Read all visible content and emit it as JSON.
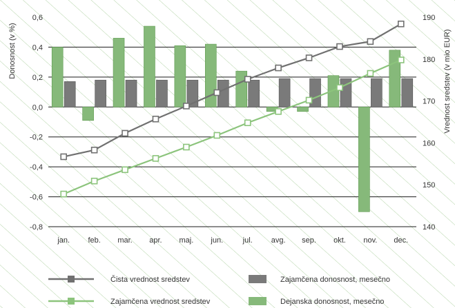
{
  "chart_data": {
    "type": "bar+line",
    "categories": [
      "jan.",
      "feb.",
      "mar.",
      "apr.",
      "maj.",
      "jun.",
      "jul.",
      "avg.",
      "sep.",
      "okt.",
      "nov.",
      "dec."
    ],
    "left_axis": {
      "label": "Donosnost (v %)",
      "ticks": [
        "0,6",
        "0,4",
        "0,2",
        "0,0",
        "-0,2",
        "-0,4",
        "-0,6",
        "-0,8"
      ],
      "ylim": [
        -0.8,
        0.6
      ]
    },
    "right_axis": {
      "label": "Vrednost sredstev (v mio EUR)",
      "ticks": [
        "190",
        "180",
        "170",
        "160",
        "150",
        "140"
      ],
      "ylim": [
        140,
        190
      ]
    },
    "grid": true,
    "bar_series": [
      {
        "name": "Dejanska donosnost, mesečno",
        "color": "#86b97a",
        "axis": "left",
        "values": [
          0.4,
          -0.09,
          0.46,
          0.54,
          0.41,
          0.42,
          0.24,
          -0.03,
          -0.03,
          0.21,
          -0.7,
          0.38
        ]
      },
      {
        "name": "Zajamčena donosnost, mesečno",
        "color": "#7a7a7a",
        "axis": "left",
        "values": [
          0.17,
          0.18,
          0.18,
          0.18,
          0.18,
          0.18,
          0.18,
          0.19,
          0.19,
          0.19,
          0.19,
          0.19
        ]
      }
    ],
    "line_series": [
      {
        "name": "Čista vrednost sredstev",
        "color": "#707070",
        "axis": "right",
        "values": [
          156.7,
          158.3,
          162.3,
          165.7,
          168.8,
          172.0,
          175.2,
          177.9,
          180.3,
          183.0,
          184.2,
          188.4
        ]
      },
      {
        "name": "Zajamčena vrednost sredstev",
        "color": "#8cc47c",
        "axis": "right",
        "values": [
          147.8,
          150.9,
          153.6,
          156.3,
          159.0,
          161.8,
          164.8,
          167.5,
          170.2,
          173.2,
          176.6,
          179.8
        ]
      }
    ],
    "legend": {
      "placement": "bottom",
      "items": [
        {
          "label": "Čista vrednost sredstev",
          "kind": "line",
          "color": "#707070"
        },
        {
          "label": "Zajamčena donosnost, mesečno",
          "kind": "bar",
          "color": "#7a7a7a"
        },
        {
          "label": "Zajamčena vrednost sredstev",
          "kind": "line",
          "color": "#8cc47c"
        },
        {
          "label": "Dejanska donosnost, mesečno",
          "kind": "bar",
          "color": "#86b97a"
        }
      ]
    }
  }
}
